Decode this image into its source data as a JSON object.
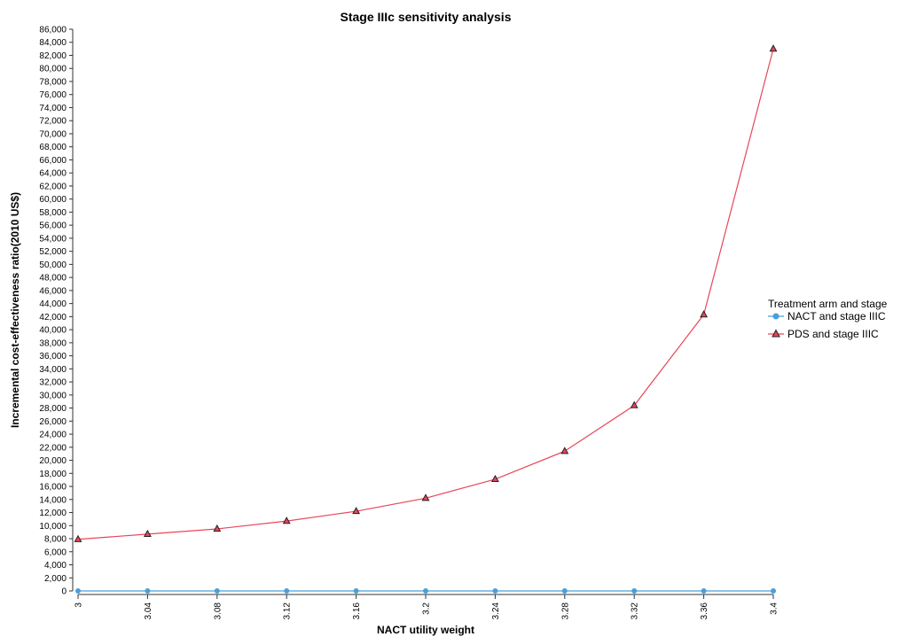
{
  "chart_data": {
    "type": "line",
    "title": "Stage IIIc sensitivity analysis",
    "xlabel": "NACT utility weight",
    "ylabel": "Incremental cost-effectiveness ratio(2010 US$)",
    "x": [
      3,
      3.04,
      3.08,
      3.12,
      3.16,
      3.2,
      3.24,
      3.28,
      3.32,
      3.36,
      3.4
    ],
    "x_tick_labels": [
      "3",
      "3.04",
      "3.08",
      "3.12",
      "3.16",
      "3.2",
      "3.24",
      "3.28",
      "3.32",
      "3.36",
      "3.4"
    ],
    "ylim": [
      0,
      86000
    ],
    "y_ticks": [
      0,
      2000,
      4000,
      6000,
      8000,
      10000,
      12000,
      14000,
      16000,
      18000,
      20000,
      22000,
      24000,
      26000,
      28000,
      30000,
      32000,
      34000,
      36000,
      38000,
      40000,
      42000,
      44000,
      46000,
      48000,
      50000,
      52000,
      54000,
      56000,
      58000,
      60000,
      62000,
      64000,
      66000,
      68000,
      70000,
      72000,
      74000,
      76000,
      78000,
      80000,
      82000,
      84000,
      86000
    ],
    "grid": false,
    "legend": {
      "title": "Treatment arm and stage",
      "placement": "right"
    },
    "series": [
      {
        "name": "NACT and stage IIIC",
        "color": "#4a9fd8",
        "marker": "circle",
        "values": [
          0,
          0,
          0,
          0,
          0,
          0,
          0,
          0,
          0,
          0,
          0
        ]
      },
      {
        "name": "PDS and stage IIIC",
        "color": "#e8465a",
        "marker": "triangle",
        "values": [
          7900,
          8700,
          9500,
          10700,
          12200,
          14200,
          17100,
          21400,
          28400,
          42300,
          83000
        ]
      }
    ]
  }
}
